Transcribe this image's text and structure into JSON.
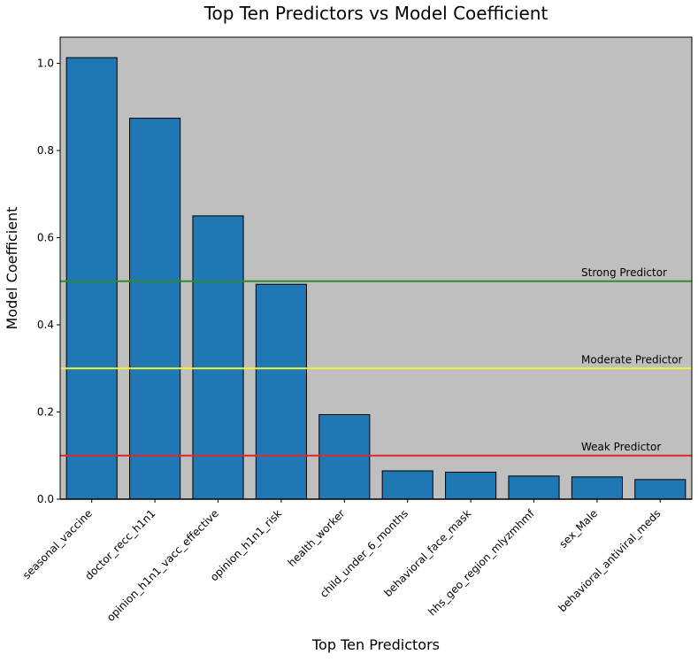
{
  "chart_data": {
    "type": "bar",
    "title": "Top Ten Predictors vs Model Coefficient",
    "xlabel": "Top Ten Predictors",
    "ylabel": "Model Coefficient",
    "categories": [
      "seasonal_vaccine",
      "doctor_recc_h1n1",
      "opinion_h1n1_vacc_effective",
      "opinion_h1n1_risk",
      "health_worker",
      "child_under_6_months",
      "behavioral_face_mask",
      "hhs_geo_region_mlyzmhmf",
      "sex_Male",
      "behavioral_antiviral_meds"
    ],
    "values": [
      1.013,
      0.874,
      0.65,
      0.493,
      0.194,
      0.065,
      0.062,
      0.053,
      0.051,
      0.045
    ],
    "ylim": [
      0,
      1.06
    ],
    "yticks": [
      "0.0",
      "0.2",
      "0.4",
      "0.6",
      "0.8",
      "1.0"
    ],
    "ytick_values": [
      0,
      0.2,
      0.4,
      0.6,
      0.8,
      1.0
    ],
    "reference_lines": [
      {
        "label": "Strong Predictor",
        "value": 0.5,
        "color": "#2e8b2e"
      },
      {
        "label": "Moderate Predictor",
        "value": 0.3,
        "color": "#f2f23a"
      },
      {
        "label": "Weak Predictor",
        "value": 0.1,
        "color": "#e0282a"
      }
    ],
    "grid": false,
    "colors": {
      "bar": "#1f77b4",
      "bar_edge": "#000000",
      "plot_background": "#bfbfbf"
    }
  }
}
